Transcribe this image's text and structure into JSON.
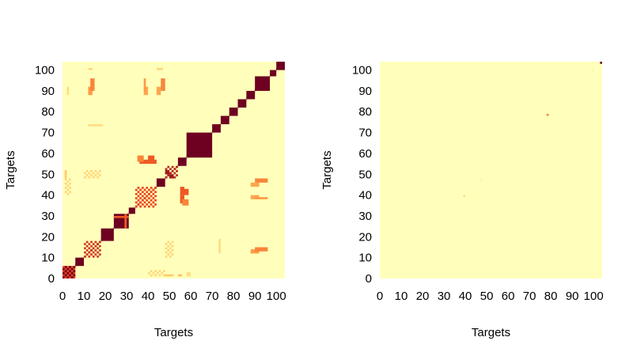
{
  "colors": {
    "low": "#ffffbb",
    "mid_light": "#fed67a",
    "mid": "#fd9a44",
    "mid_high": "#e8451c",
    "high": "#6e0021"
  },
  "chart_data": [
    {
      "type": "heatmap",
      "id": "left",
      "title": "",
      "xlabel": "Targets",
      "ylabel": "Targets",
      "xlim": [
        0,
        104
      ],
      "ylim": [
        0,
        104
      ],
      "xticks": [
        0,
        10,
        20,
        30,
        40,
        50,
        60,
        70,
        80,
        90,
        100
      ],
      "yticks": [
        0,
        10,
        20,
        30,
        40,
        50,
        60,
        70,
        80,
        90,
        100
      ],
      "value_range": [
        0,
        1
      ],
      "background_value": 0,
      "diagonal_value": 1,
      "cells": [
        {
          "x": [
            0,
            6
          ],
          "y": [
            0,
            6
          ],
          "v": 0.75
        },
        {
          "x": [
            0,
            6
          ],
          "y": [
            0,
            6
          ],
          "v": 1.0,
          "pattern": "checker"
        },
        {
          "x": [
            6,
            10
          ],
          "y": [
            6,
            10
          ],
          "v": 1.0
        },
        {
          "x": [
            10,
            18
          ],
          "y": [
            10,
            18
          ],
          "v": 0.8,
          "pattern": "checker"
        },
        {
          "x": [
            18,
            24
          ],
          "y": [
            18,
            24
          ],
          "v": 1.0
        },
        {
          "x": [
            24,
            31
          ],
          "y": [
            24,
            31
          ],
          "v": 1.0
        },
        {
          "x": [
            24,
            31
          ],
          "y": [
            29,
            30
          ],
          "v": 0.7
        },
        {
          "x": [
            29,
            30
          ],
          "y": [
            24,
            31
          ],
          "v": 0.7
        },
        {
          "x": [
            31,
            34
          ],
          "y": [
            31,
            34
          ],
          "v": 1.0
        },
        {
          "x": [
            34,
            44
          ],
          "y": [
            34,
            44
          ],
          "v": 0.75,
          "pattern": "checker"
        },
        {
          "x": [
            44,
            48
          ],
          "y": [
            44,
            48
          ],
          "v": 1.0
        },
        {
          "x": [
            48,
            54
          ],
          "y": [
            48,
            54
          ],
          "v": 0.85,
          "pattern": "checker"
        },
        {
          "x": [
            54,
            58
          ],
          "y": [
            54,
            58
          ],
          "v": 1.0
        },
        {
          "x": [
            58,
            70
          ],
          "y": [
            58,
            70
          ],
          "v": 1.0
        },
        {
          "x": [
            70,
            74
          ],
          "y": [
            70,
            74
          ],
          "v": 1.0
        },
        {
          "x": [
            74,
            78
          ],
          "y": [
            74,
            78
          ],
          "v": 1.0
        },
        {
          "x": [
            78,
            82
          ],
          "y": [
            78,
            82
          ],
          "v": 1.0
        },
        {
          "x": [
            82,
            86
          ],
          "y": [
            82,
            86
          ],
          "v": 1.0
        },
        {
          "x": [
            86,
            90
          ],
          "y": [
            86,
            90
          ],
          "v": 1.0
        },
        {
          "x": [
            90,
            97
          ],
          "y": [
            90,
            97
          ],
          "v": 1.0
        },
        {
          "x": [
            97,
            100
          ],
          "y": [
            97,
            100
          ],
          "v": 1.0
        },
        {
          "x": [
            100,
            104
          ],
          "y": [
            100,
            104
          ],
          "v": 1.0
        },
        {
          "x": [
            36,
            40
          ],
          "y": [
            55,
            57
          ],
          "v": 0.7
        },
        {
          "x": [
            55,
            57
          ],
          "y": [
            36,
            40
          ],
          "v": 0.7
        },
        {
          "x": [
            40,
            44
          ],
          "y": [
            55,
            57
          ],
          "v": 0.7
        },
        {
          "x": [
            55,
            57
          ],
          "y": [
            40,
            44
          ],
          "v": 0.7
        },
        {
          "x": [
            56,
            59
          ],
          "y": [
            40,
            43
          ],
          "v": 0.7
        },
        {
          "x": [
            40,
            43
          ],
          "y": [
            56,
            59
          ],
          "v": 0.7
        },
        {
          "x": [
            56,
            59
          ],
          "y": [
            35,
            38
          ],
          "v": 0.6
        },
        {
          "x": [
            35,
            38
          ],
          "y": [
            56,
            59
          ],
          "v": 0.6
        },
        {
          "x": [
            12,
            14
          ],
          "y": [
            88,
            92
          ],
          "v": 0.55
        },
        {
          "x": [
            88,
            92
          ],
          "y": [
            12,
            14
          ],
          "v": 0.55
        },
        {
          "x": [
            38,
            40
          ],
          "y": [
            88,
            92
          ],
          "v": 0.5
        },
        {
          "x": [
            88,
            92
          ],
          "y": [
            38,
            40
          ],
          "v": 0.5
        },
        {
          "x": [
            44,
            46
          ],
          "y": [
            88,
            92
          ],
          "v": 0.5
        },
        {
          "x": [
            88,
            92
          ],
          "y": [
            44,
            46
          ],
          "v": 0.5
        },
        {
          "x": [
            90,
            96
          ],
          "y": [
            46,
            48
          ],
          "v": 0.6
        },
        {
          "x": [
            46,
            48
          ],
          "y": [
            90,
            96
          ],
          "v": 0.6
        },
        {
          "x": [
            90,
            96
          ],
          "y": [
            38,
            39
          ],
          "v": 0.55
        },
        {
          "x": [
            38,
            39
          ],
          "y": [
            90,
            96
          ],
          "v": 0.55
        },
        {
          "x": [
            90,
            96
          ],
          "y": [
            13,
            15
          ],
          "v": 0.6
        },
        {
          "x": [
            13,
            15
          ],
          "y": [
            90,
            96
          ],
          "v": 0.6
        },
        {
          "x": [
            10,
            18
          ],
          "y": [
            48,
            52
          ],
          "v": 0.3,
          "pattern": "checker"
        },
        {
          "x": [
            48,
            52
          ],
          "y": [
            10,
            18
          ],
          "v": 0.3,
          "pattern": "checker"
        },
        {
          "x": [
            40,
            48
          ],
          "y": [
            1,
            4
          ],
          "v": 0.3,
          "pattern": "checker"
        },
        {
          "x": [
            1,
            4
          ],
          "y": [
            40,
            48
          ],
          "v": 0.3,
          "pattern": "checker"
        },
        {
          "x": [
            12,
            14
          ],
          "y": [
            100,
            101
          ],
          "v": 0.3
        },
        {
          "x": [
            44,
            47
          ],
          "y": [
            100,
            101
          ],
          "v": 0.3
        },
        {
          "x": [
            12,
            19
          ],
          "y": [
            73,
            74
          ],
          "v": 0.25
        },
        {
          "x": [
            73,
            74
          ],
          "y": [
            12,
            19
          ],
          "v": 0.25
        },
        {
          "x": [
            48,
            50
          ],
          "y": [
            50,
            52
          ],
          "v": 0.9
        },
        {
          "x": [
            50,
            52
          ],
          "y": [
            48,
            50
          ],
          "v": 0.9
        },
        {
          "x": [
            2,
            3
          ],
          "y": [
            88,
            92
          ],
          "v": 0.25
        },
        {
          "x": [
            1,
            2
          ],
          "y": [
            48,
            52
          ],
          "v": 0.35
        },
        {
          "x": [
            48,
            52
          ],
          "y": [
            1,
            2
          ],
          "v": 0.35
        },
        {
          "x": [
            54,
            56
          ],
          "y": [
            1,
            2
          ],
          "v": 0.4
        },
        {
          "x": [
            58,
            60
          ],
          "y": [
            1,
            3
          ],
          "v": 0.25
        }
      ]
    },
    {
      "type": "heatmap",
      "id": "right",
      "title": "",
      "xlabel": "Targets",
      "ylabel": "Targets",
      "xlim": [
        0,
        104
      ],
      "ylim": [
        0,
        104
      ],
      "xticks": [
        0,
        10,
        20,
        30,
        40,
        50,
        60,
        70,
        80,
        90,
        100
      ],
      "yticks": [
        0,
        10,
        20,
        30,
        40,
        50,
        60,
        70,
        80,
        90,
        100
      ],
      "value_range": [
        0,
        1
      ],
      "background_value": 0,
      "diagonal_value": 0,
      "cells": [
        {
          "x": [
            103,
            104
          ],
          "y": [
            103,
            104
          ],
          "v": 1.0
        },
        {
          "x": [
            78,
            79
          ],
          "y": [
            78,
            79
          ],
          "v": 0.6
        },
        {
          "x": [
            39,
            40
          ],
          "y": [
            39,
            40
          ],
          "v": 0.25
        },
        {
          "x": [
            47,
            48
          ],
          "y": [
            47,
            48
          ],
          "v": 0.08
        },
        {
          "x": [
            99,
            100
          ],
          "y": [
            99,
            100
          ],
          "v": 0.08
        }
      ]
    }
  ]
}
